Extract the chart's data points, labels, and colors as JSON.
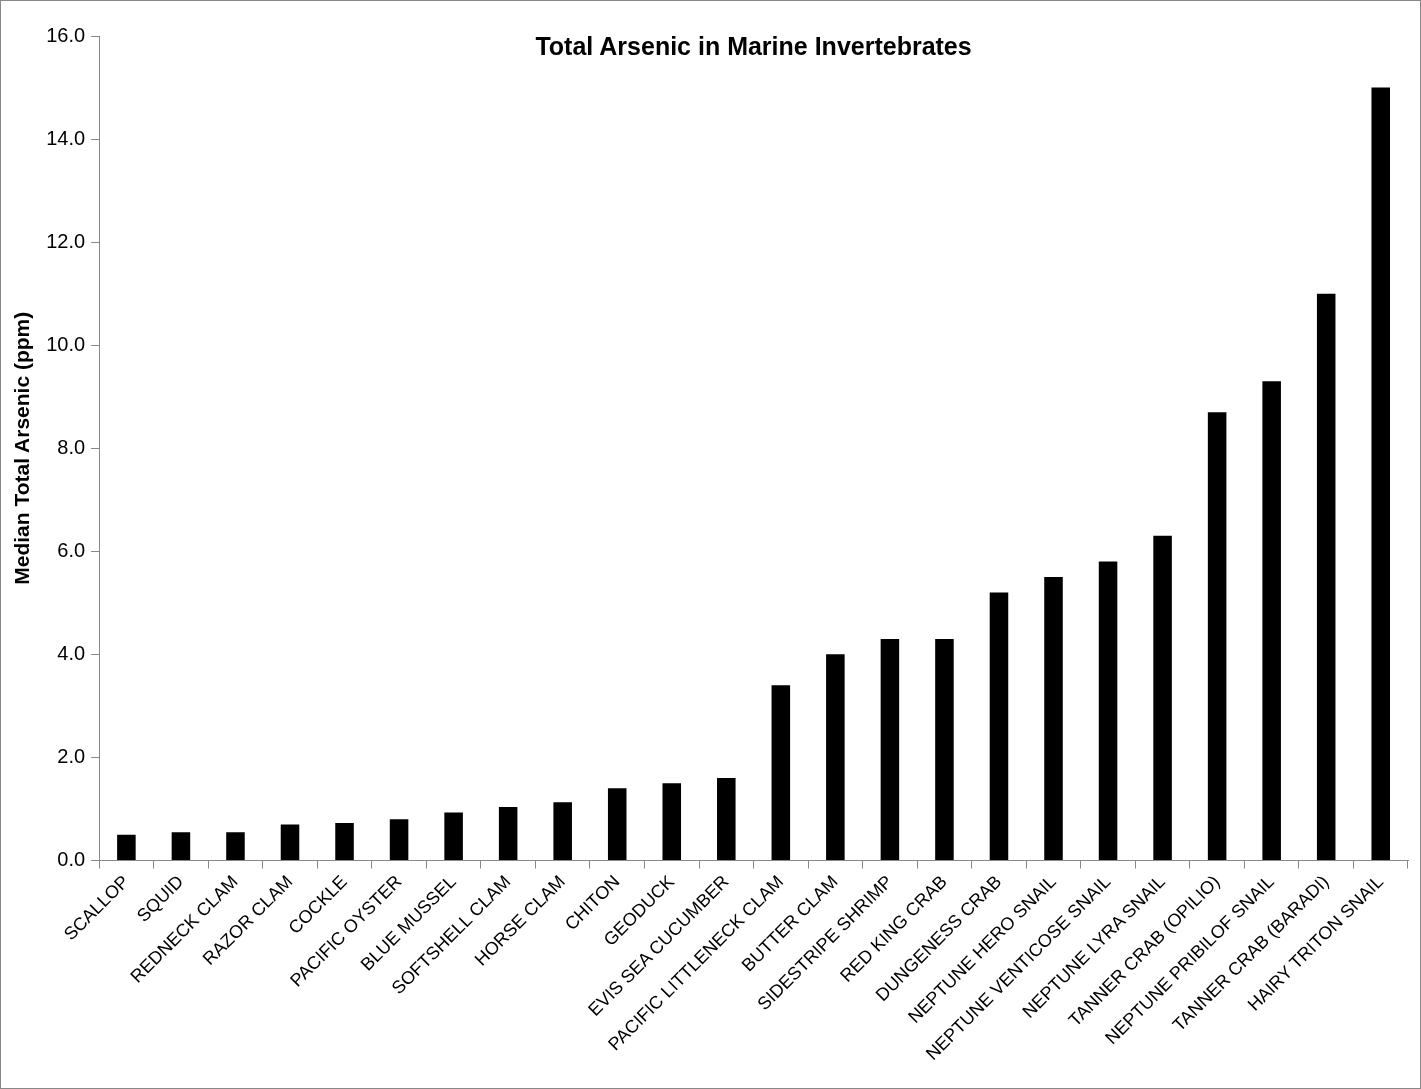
{
  "chart_data": {
    "type": "bar",
    "title": "Total Arsenic in Marine Invertebrates",
    "ylabel": "Median Total Arsenic (ppm)",
    "categories": [
      "SCALLOP",
      "SQUID",
      "REDNECK CLAM",
      "RAZOR CLAM",
      "COCKLE",
      "PACIFIC OYSTER",
      "BLUE MUSSEL",
      "SOFTSHELL CLAM",
      "HORSE CLAM",
      "CHITON",
      "GEODUCK",
      "EVIS SEA CUCUMBER",
      "PACIFIC LITTLENECK CLAM",
      "BUTTER CLAM",
      "SIDESTRIPE SHRIMP",
      "RED KING CRAB",
      "DUNGENESS CRAB",
      "NEPTUNE HERO SNAIL",
      "NEPTUNE VENTICOSE SNAIL",
      "NEPTUNE LYRA SNAIL",
      "TANNER CRAB (OPILIO)",
      "NEPTUNE PRIBILOF SNAIL",
      "TANNER CRAB (BARADI)",
      "HAIRY TRITON SNAIL"
    ],
    "values": [
      0.5,
      0.55,
      0.55,
      0.7,
      0.73,
      0.8,
      0.93,
      1.04,
      1.13,
      1.4,
      1.5,
      1.6,
      3.4,
      4.0,
      4.3,
      4.3,
      5.2,
      5.5,
      5.8,
      6.3,
      8.7,
      9.3,
      11.0,
      15.0
    ],
    "color": "#000000",
    "ylim": [
      0,
      16
    ],
    "yticks": [
      {
        "value": 0,
        "label": "0.0"
      },
      {
        "value": 2,
        "label": "2.0"
      },
      {
        "value": 4,
        "label": "4.0"
      },
      {
        "value": 6,
        "label": "6.0"
      },
      {
        "value": 8,
        "label": "8.0"
      },
      {
        "value": 10,
        "label": "10.0"
      },
      {
        "value": 12,
        "label": "12.0"
      },
      {
        "value": 14,
        "label": "14.0"
      },
      {
        "value": 16,
        "label": "16.0"
      }
    ],
    "grid": false,
    "legend": false
  }
}
